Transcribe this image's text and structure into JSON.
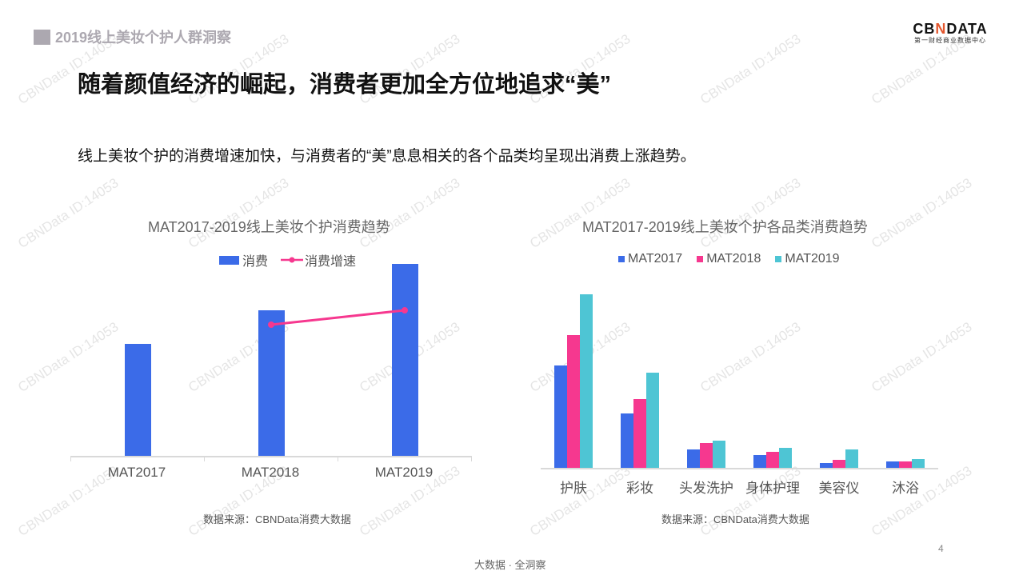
{
  "header": {
    "section_tag": "2019线上美妆个护人群洞察",
    "logo_brand_left": "CB",
    "logo_brand_x": "N",
    "logo_brand_right": "DATA",
    "logo_sub": "第一财经商业数据中心"
  },
  "headline": "随着颜值经济的崛起，消费者更加全方位地追求“美”",
  "subline": "线上美妆个护的消费增速加快，与消费者的“美”息息相关的各个品类均呈现出消费上涨趋势。",
  "colors": {
    "blue": "#3b6be8",
    "pink": "#f6388f",
    "teal": "#4ec5d4",
    "tag_gray": "#aca8b0"
  },
  "chart_data": [
    {
      "type": "bar",
      "title": "MAT2017-2019线上美妆个护消费趋势",
      "categories": [
        "MAT2017",
        "MAT2018",
        "MAT2019"
      ],
      "series": [
        {
          "name": "消费",
          "type": "bar",
          "values": [
            140,
            182,
            240
          ]
        },
        {
          "name": "消费增速",
          "type": "line",
          "values": [
            null,
            164,
            182
          ]
        }
      ],
      "xlabel": "",
      "ylabel": "",
      "axis_values_shown": false,
      "legend_position": "top",
      "note": "relative pixel heights; no numeric axis shown"
    },
    {
      "type": "bar",
      "title": "MAT2017-2019线上美妆个护各品类消费趋势",
      "categories": [
        "护肤",
        "彩妆",
        "头发洗护",
        "身体护理",
        "美容仪",
        "沐浴"
      ],
      "series": [
        {
          "name": "MAT2017",
          "values": [
            128,
            68,
            23,
            16,
            6,
            8
          ]
        },
        {
          "name": "MAT2018",
          "values": [
            166,
            86,
            31,
            20,
            10,
            8
          ]
        },
        {
          "name": "MAT2019",
          "values": [
            217,
            119,
            34,
            25,
            23,
            11
          ]
        }
      ],
      "xlabel": "",
      "ylabel": "",
      "axis_values_shown": false,
      "legend_position": "top",
      "note": "relative pixel heights; no numeric axis shown"
    }
  ],
  "charts": {
    "left": {
      "title": "MAT2017-2019线上美妆个护消费趋势",
      "legend": [
        "消费",
        "消费增速"
      ],
      "xlabels": [
        "MAT2017",
        "MAT2018",
        "MAT2019"
      ],
      "source": "数据来源：CBNData消费大数据"
    },
    "right": {
      "title": "MAT2017-2019线上美妆个护各品类消费趋势",
      "legend": [
        "MAT2017",
        "MAT2018",
        "MAT2019"
      ],
      "xlabels": [
        "护肤",
        "彩妆",
        "头发洗护",
        "身体护理",
        "美容仪",
        "沐浴"
      ],
      "source": "数据来源：CBNData消费大数据"
    }
  },
  "footer": {
    "tagline": "大数据 · 全洞察",
    "page_number": "4"
  },
  "watermark": "CBNData ID:14053"
}
